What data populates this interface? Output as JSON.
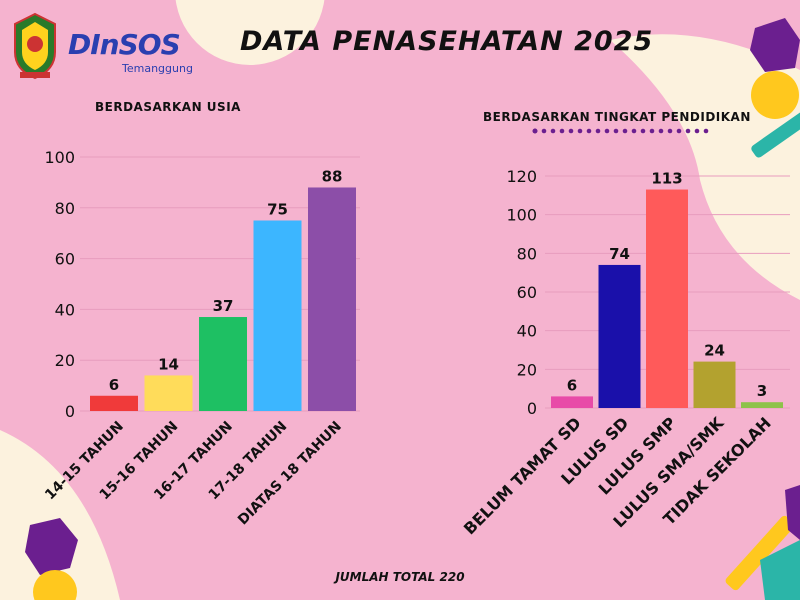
{
  "header": {
    "title": "DATA PENASEHATAN 2025",
    "logo_text": "DInSOS",
    "logo_sub": "Temanggung"
  },
  "footer": {
    "total": "JUMLAH TOTAL 220"
  },
  "colors": {
    "background": "#f5b3cf"
  },
  "chart_data": [
    {
      "type": "bar",
      "subtitle": "BERDASARKAN USIA",
      "categories": [
        "14-15 TAHUN",
        "15-16 TAHUN",
        "16-17 TAHUN",
        "17-18 TAHUN",
        "DIATAS 18 TAHUN"
      ],
      "values": [
        6,
        14,
        37,
        75,
        88
      ],
      "colors": [
        "#f03a3a",
        "#ffdc5a",
        "#1ec063",
        "#3cb6ff",
        "#8c4ea8"
      ],
      "ylim": [
        0,
        100
      ],
      "yticks": [
        0,
        20,
        40,
        60,
        80,
        100
      ],
      "grid": true
    },
    {
      "type": "bar",
      "subtitle": "BERDASARKAN TINGKAT PENDIDIKAN",
      "categories": [
        "BELUM TAMAT SD",
        "LULUS SD",
        "LULUS SMP",
        "LULUS SMA/SMK",
        "TIDAK SEKOLAH"
      ],
      "values": [
        6,
        74,
        113,
        24,
        3
      ],
      "colors": [
        "#e84ba8",
        "#1a10aa",
        "#ff5a5a",
        "#b3a22f",
        "#8dc24a"
      ],
      "ylim": [
        0,
        120
      ],
      "yticks": [
        0,
        20,
        40,
        60,
        80,
        100,
        120
      ],
      "grid": true
    }
  ]
}
